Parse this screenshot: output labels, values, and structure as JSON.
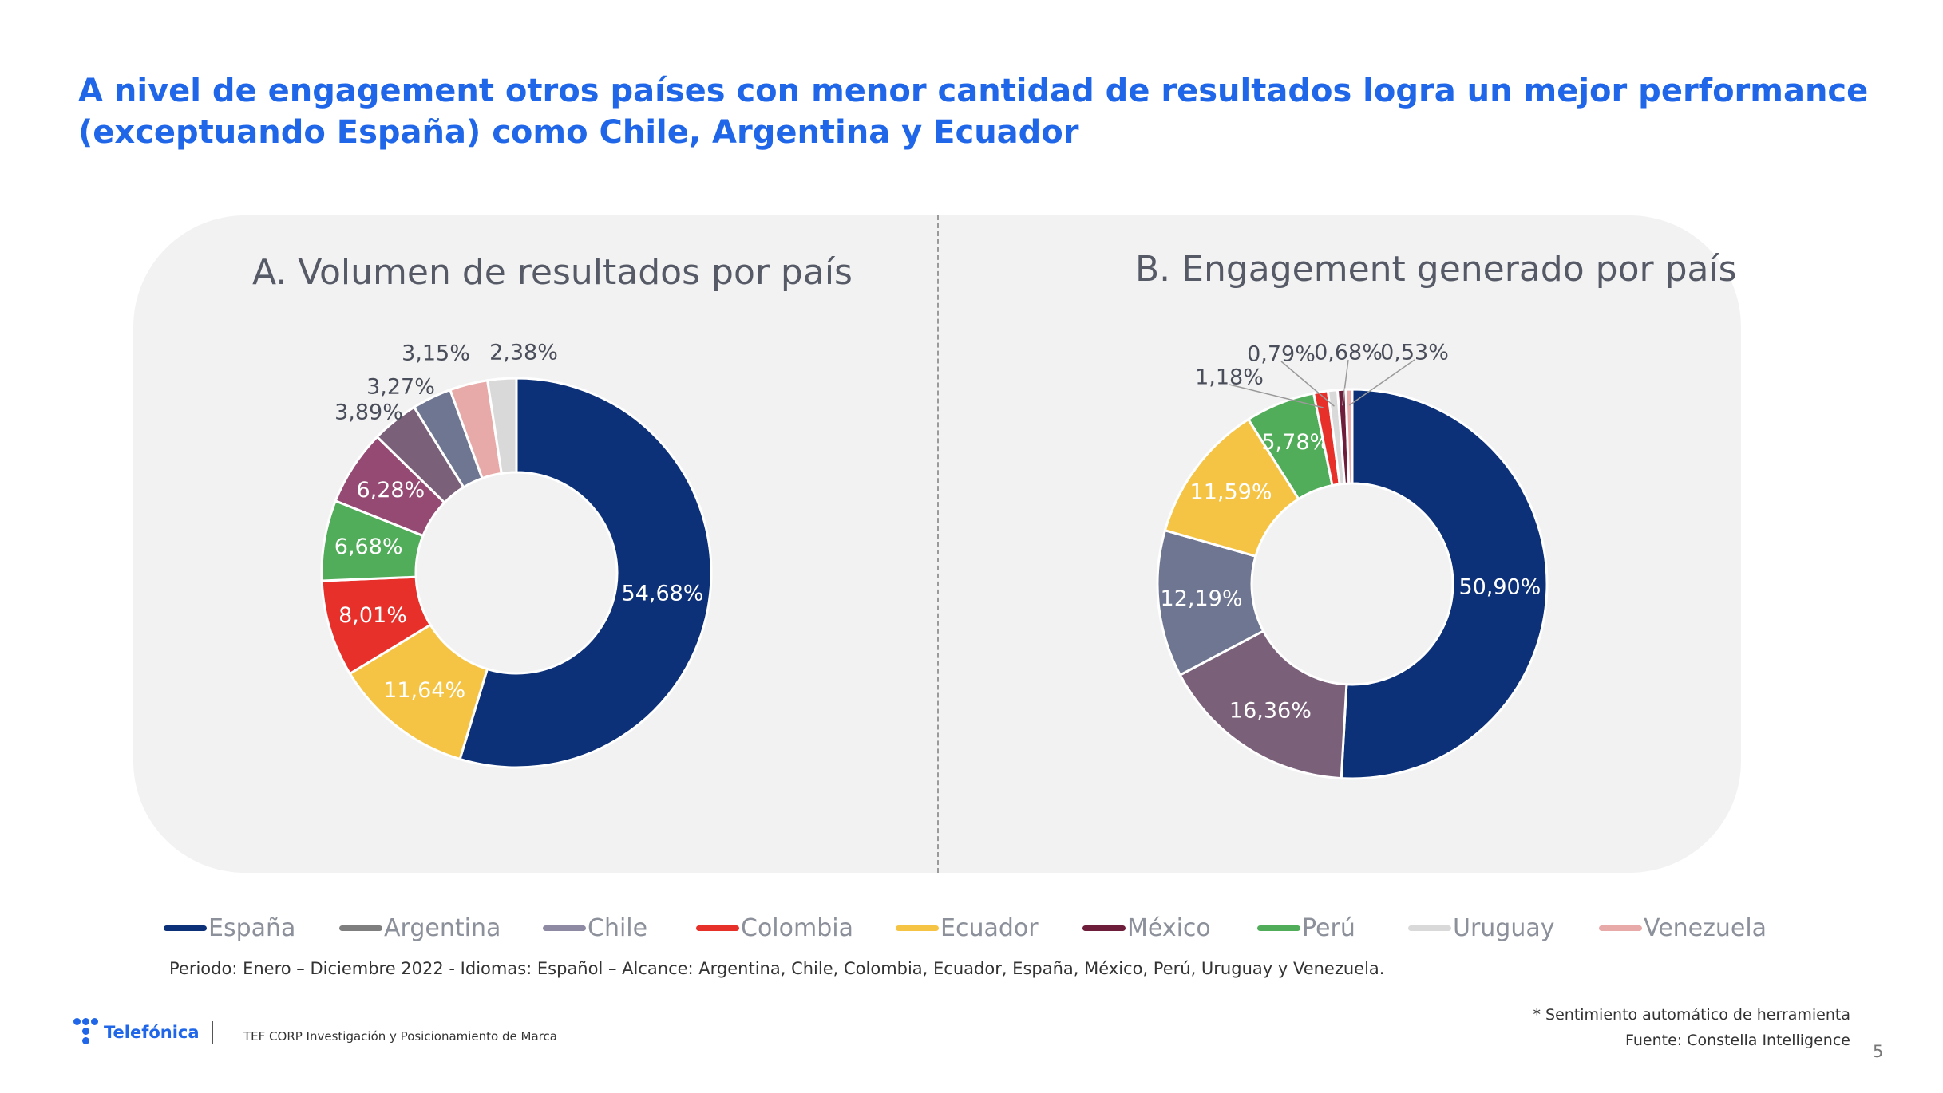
{
  "page": {
    "title": "A nivel de engagement otros países con menor cantidad de resultados logra un mejor performance (exceptuando España) como Chile, Argentina y Ecuador",
    "period_note": "Periodo: Enero – Diciembre 2022 - Idiomas: Español  –  Alcance: Argentina, Chile, Colombia, Ecuador, España, México, Perú, Uruguay y Venezuela.",
    "brand_name": "Telefónica",
    "department": "TEF CORP Investigación y Posicionamiento de Marca",
    "sentiment_note": "* Sentimiento automático de herramienta",
    "source_note": "Fuente: Constella Intelligence",
    "page_number": "5"
  },
  "colors": {
    "title": "#1f66e8",
    "España": "#0d3178",
    "Argentina": "#6e7691",
    "Chile": "#7a6079",
    "Colombia": "#e8302a",
    "Ecuador": "#f6c445",
    "México": "#944a72",
    "Perú": "#52ad5a",
    "Uruguay": "#d9d9d9",
    "Venezuela": "#e8aaa8",
    "México_engagement": "#6e1d3a",
    "Chile_legend": "#8e8aa3",
    "Argentina_legend": "#7f7f7f",
    "México_legend": "#6e1d3a"
  },
  "legend": [
    {
      "label": "España",
      "color": "#0d3178"
    },
    {
      "label": "Argentina",
      "color": "#7f7f7f"
    },
    {
      "label": "Chile",
      "color": "#8e8aa3"
    },
    {
      "label": "Colombia",
      "color": "#e8302a"
    },
    {
      "label": "Ecuador",
      "color": "#f6c445"
    },
    {
      "label": "México",
      "color": "#6e1d3a"
    },
    {
      "label": "Perú",
      "color": "#52ad5a"
    },
    {
      "label": "Uruguay",
      "color": "#d9d9d9"
    },
    {
      "label": "Venezuela",
      "color": "#e8aaa8"
    }
  ],
  "chart_data": [
    {
      "type": "pie",
      "donut": true,
      "title": "A. Volumen de resultados por país",
      "slices": [
        {
          "label": "España",
          "value": 54.68,
          "display": "54,68%",
          "color": "#0d3178"
        },
        {
          "label": "Ecuador",
          "value": 11.64,
          "display": "11,64%",
          "color": "#f6c445"
        },
        {
          "label": "Colombia",
          "value": 8.01,
          "display": "8,01%",
          "color": "#e8302a"
        },
        {
          "label": "Perú",
          "value": 6.68,
          "display": "6,68%",
          "color": "#52ad5a"
        },
        {
          "label": "México",
          "value": 6.28,
          "display": "6,28%",
          "color": "#944a72"
        },
        {
          "label": "Chile",
          "value": 3.89,
          "display": "3,89%",
          "color": "#7a6079"
        },
        {
          "label": "Argentina",
          "value": 3.27,
          "display": "3,27%",
          "color": "#6e7691"
        },
        {
          "label": "Venezuela",
          "value": 3.15,
          "display": "3,15%",
          "color": "#e8aaa8"
        },
        {
          "label": "Uruguay",
          "value": 2.38,
          "display": "2,38%",
          "color": "#d9d9d9"
        }
      ]
    },
    {
      "type": "pie",
      "donut": true,
      "title": "B. Engagement generado por país",
      "slices": [
        {
          "label": "España",
          "value": 50.9,
          "display": "50,90%",
          "color": "#0d3178"
        },
        {
          "label": "Chile",
          "value": 16.36,
          "display": "16,36%",
          "color": "#7a6079"
        },
        {
          "label": "Argentina",
          "value": 12.19,
          "display": "12,19%",
          "color": "#6e7691"
        },
        {
          "label": "Ecuador",
          "value": 11.59,
          "display": "11,59%",
          "color": "#f6c445"
        },
        {
          "label": "Perú",
          "value": 5.78,
          "display": "5,78%",
          "color": "#52ad5a"
        },
        {
          "label": "Colombia",
          "value": 1.18,
          "display": "1,18%",
          "color": "#e8302a"
        },
        {
          "label": "Uruguay",
          "value": 0.79,
          "display": "0,79%",
          "color": "#d9d9d9"
        },
        {
          "label": "México",
          "value": 0.68,
          "display": "0,68%",
          "color": "#6e1d3a"
        },
        {
          "label": "Venezuela",
          "value": 0.53,
          "display": "0,53%",
          "color": "#e8aaa8"
        }
      ]
    }
  ]
}
